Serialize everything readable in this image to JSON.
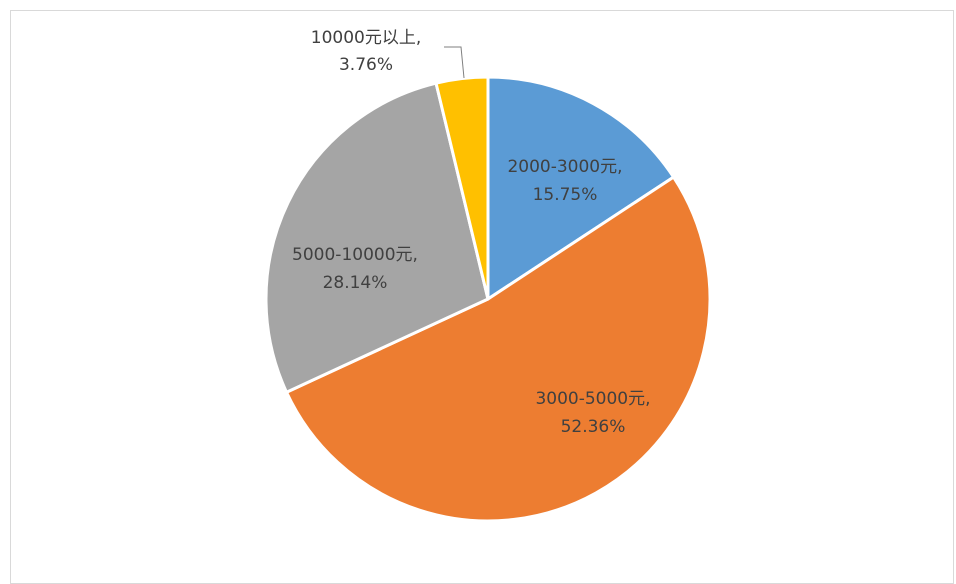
{
  "chart_data": {
    "type": "pie",
    "title": "",
    "slices": [
      {
        "category": "2000-3000元",
        "percent_label": "15.75%",
        "value": 15.75,
        "color": "#5b9bd5"
      },
      {
        "category": "3000-5000元",
        "percent_label": "52.36%",
        "value": 52.36,
        "color": "#ed7d31"
      },
      {
        "category": "5000-10000元",
        "percent_label": "28.14%",
        "value": 28.14,
        "color": "#a5a5a5"
      },
      {
        "category": "10000元以上",
        "percent_label": "3.76%",
        "value": 3.76,
        "color": "#ffc000"
      }
    ],
    "label_separator": ",",
    "legend": "none"
  }
}
